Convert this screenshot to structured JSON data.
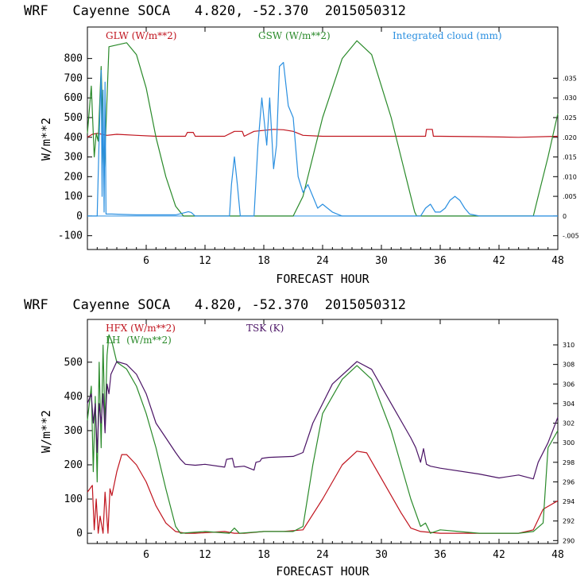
{
  "charts": [
    {
      "title": "WRF   Cayenne SOCA   4.820, -52.370  2015050312",
      "ylabel": "W/m**2",
      "xlabel": "FORECAST HOUR",
      "legend": [
        {
          "label": "GLW (W/m**2)",
          "color": "#c0141e"
        },
        {
          "label": "GSW (W/m**2)",
          "color": "#2a8a2a"
        },
        {
          "label": "Integrated cloud (mm)",
          "color": "#2a8fe0"
        }
      ],
      "x_ticks": [
        "6",
        "12",
        "18",
        "24",
        "30",
        "36",
        "42",
        "48"
      ],
      "y_ticks": [
        "-100",
        "0",
        "100",
        "200",
        "300",
        "400",
        "500",
        "600",
        "700",
        "800"
      ],
      "y2_ticks": [
        "-.005",
        "0",
        ".005",
        ".010",
        ".015",
        ".020",
        ".025",
        ".030",
        ".035"
      ]
    },
    {
      "title": "WRF   Cayenne SOCA   4.820, -52.370  2015050312",
      "ylabel": "W/m**2",
      "xlabel": "FORECAST HOUR",
      "legend": [
        {
          "label": "HFX (W/m**2)",
          "color": "#c0141e"
        },
        {
          "label": "LH  (W/m**2)",
          "color": "#2a8a2a"
        },
        {
          "label": "TSK (K)",
          "color": "#4b1466"
        }
      ],
      "x_ticks": [
        "6",
        "12",
        "18",
        "24",
        "30",
        "36",
        "42",
        "48"
      ],
      "y_ticks": [
        "0",
        "100",
        "200",
        "300",
        "400",
        "500"
      ],
      "y2_ticks": [
        "290",
        "292",
        "294",
        "296",
        "298",
        "300",
        "302",
        "304",
        "306",
        "308",
        "310"
      ]
    }
  ],
  "chart_data": [
    {
      "type": "line",
      "title": "WRF   Cayenne SOCA   4.820, -52.370  2015050312",
      "xlabel": "FORECAST HOUR",
      "ylabel": "W/m**2",
      "xlim": [
        0,
        48
      ],
      "ylim": [
        -170,
        960
      ],
      "y2lim": [
        -0.0085,
        0.048
      ],
      "series": [
        {
          "name": "GLW (W/m**2)",
          "axis": "left",
          "color": "#c0141e",
          "x": [
            0,
            0.5,
            1,
            2,
            3,
            5,
            7,
            9,
            10,
            10.2,
            10.8,
            11,
            14,
            15,
            15.8,
            16,
            17,
            19,
            20,
            21,
            22,
            24,
            26,
            30,
            34,
            34.5,
            34.6,
            35.2,
            35.3,
            36,
            40,
            44,
            48
          ],
          "values": [
            400,
            415,
            420,
            410,
            415,
            410,
            405,
            405,
            405,
            425,
            425,
            405,
            405,
            430,
            430,
            405,
            430,
            440,
            438,
            430,
            410,
            405,
            405,
            405,
            405,
            405,
            440,
            440,
            405,
            405,
            403,
            400,
            405
          ]
        },
        {
          "name": "GSW (W/m**2)",
          "axis": "left",
          "color": "#2a8a2a",
          "x": [
            0,
            0.4,
            0.7,
            0.9,
            1.1,
            1.4,
            1.7,
            2.2,
            3.1,
            4,
            5,
            6,
            7,
            8,
            9,
            9.8,
            10,
            21,
            22,
            24,
            26,
            27.5,
            29,
            31,
            32.5,
            33.4,
            33.6,
            45.5,
            46,
            47,
            48
          ],
          "values": [
            420,
            660,
            300,
            420,
            380,
            760,
            200,
            860,
            870,
            880,
            820,
            650,
            400,
            200,
            50,
            0,
            0,
            0,
            100,
            500,
            800,
            890,
            820,
            500,
            200,
            20,
            0,
            0,
            100,
            300,
            520
          ]
        },
        {
          "name": "Integrated cloud (mm)",
          "axis": "right",
          "color": "#2a8fe0",
          "x": [
            0,
            1,
            1.2,
            1.4,
            1.5,
            1.6,
            1.7,
            1.8,
            1.9,
            2,
            2.2,
            2.5,
            5,
            9,
            10,
            10.3,
            10.6,
            11,
            14.5,
            14.7,
            15,
            15.3,
            15.6,
            17,
            17.4,
            17.8,
            18.3,
            18.6,
            19,
            19.3,
            19.6,
            20,
            20.5,
            21,
            21.5,
            22,
            22.5,
            23,
            23.5,
            24,
            24.5,
            25,
            26,
            34,
            34.5,
            35,
            35.5,
            36,
            36.5,
            37,
            37.5,
            38,
            38.5,
            39,
            40,
            48
          ],
          "values": [
            0,
            0,
            0.02,
            0.037,
            0.005,
            0.032,
            0.001,
            0.034,
            0.0005,
            0.0005,
            0.0005,
            0.0005,
            0.0003,
            0.0003,
            0.0009,
            0.0011,
            0.0009,
            0,
            0,
            0.008,
            0.015,
            0.008,
            0,
            0,
            0.018,
            0.03,
            0.018,
            0.03,
            0.012,
            0.018,
            0.038,
            0.039,
            0.028,
            0.025,
            0.01,
            0.006,
            0.008,
            0.005,
            0.002,
            0.003,
            0.002,
            0.001,
            0,
            0,
            0.002,
            0.003,
            0.001,
            0.001,
            0.002,
            0.004,
            0.005,
            0.004,
            0.002,
            0.0005,
            0,
            0
          ]
        }
      ]
    },
    {
      "type": "line",
      "title": "WRF   Cayenne SOCA   4.820, -52.370  2015050312",
      "xlabel": "FORECAST HOUR",
      "ylabel": "W/m**2",
      "xlim": [
        0,
        48
      ],
      "ylim": [
        -30,
        625
      ],
      "y2lim": [
        289.7,
        312.6
      ],
      "series": [
        {
          "name": "HFX (W/m**2)",
          "axis": "left",
          "color": "#c0141e",
          "x": [
            0,
            0.5,
            0.7,
            0.9,
            1.1,
            1.3,
            1.6,
            1.8,
            2.1,
            2.3,
            2.5,
            3,
            3.5,
            4,
            5,
            6,
            7,
            8,
            9,
            10,
            11,
            14,
            15,
            16,
            18,
            20,
            22,
            24,
            26,
            27.5,
            28.5,
            30,
            32,
            33,
            34,
            36,
            40,
            44,
            45.5,
            46.5,
            48
          ],
          "values": [
            120,
            140,
            10,
            100,
            0,
            50,
            0,
            120,
            0,
            130,
            110,
            180,
            230,
            230,
            200,
            150,
            80,
            30,
            5,
            0,
            0,
            5,
            0,
            0,
            5,
            5,
            10,
            100,
            200,
            240,
            235,
            160,
            60,
            15,
            5,
            0,
            0,
            0,
            10,
            70,
            95
          ]
        },
        {
          "name": "LH  (W/m**2)",
          "axis": "left",
          "color": "#2a8a2a",
          "x": [
            0,
            0.4,
            0.6,
            0.8,
            1,
            1.2,
            1.4,
            1.6,
            1.8,
            2,
            2.2,
            2.5,
            3,
            3.5,
            4,
            5,
            6,
            7,
            8,
            9,
            9.5,
            12,
            14.5,
            15,
            15.5,
            18,
            21,
            22,
            23,
            24,
            26,
            27.5,
            29,
            31,
            33,
            34,
            34.5,
            35,
            36,
            40,
            44,
            45.5,
            46.5,
            47,
            48
          ],
          "values": [
            330,
            430,
            180,
            400,
            150,
            500,
            250,
            550,
            310,
            520,
            580,
            560,
            500,
            490,
            480,
            430,
            350,
            250,
            130,
            20,
            0,
            5,
            0,
            15,
            0,
            5,
            5,
            20,
            200,
            350,
            450,
            490,
            450,
            300,
            100,
            20,
            30,
            0,
            10,
            0,
            0,
            5,
            30,
            250,
            300
          ]
        },
        {
          "name": "TSK (K)",
          "axis": "right",
          "color": "#4b1466",
          "x": [
            0,
            0.4,
            0.6,
            0.8,
            1,
            1.2,
            1.4,
            1.6,
            1.8,
            2,
            2.2,
            2.4,
            3,
            4,
            5,
            6,
            7,
            8,
            9,
            9.5,
            10,
            11,
            12,
            14,
            14.2,
            14.8,
            15,
            16,
            17,
            17.2,
            17.6,
            17.8,
            18.5,
            21,
            22,
            23,
            25,
            27.5,
            29,
            31,
            33,
            33.5,
            34,
            34.3,
            34.6,
            35,
            36,
            40,
            42,
            44,
            45.5,
            46,
            47,
            48
          ],
          "values": [
            304,
            305,
            302,
            304,
            299,
            304,
            302,
            305,
            301,
            306,
            305,
            307,
            308.3,
            308,
            307,
            305,
            302,
            300.5,
            299,
            298.3,
            297.8,
            297.7,
            297.8,
            297.5,
            298.3,
            298.4,
            297.5,
            297.6,
            297.2,
            298,
            298.1,
            298.4,
            298.5,
            298.6,
            299,
            302,
            306,
            308.3,
            307.5,
            304,
            300.5,
            299.5,
            298,
            299.4,
            297.8,
            297.6,
            297.4,
            296.8,
            296.4,
            296.7,
            296.3,
            298,
            300,
            302.6
          ]
        }
      ]
    }
  ]
}
